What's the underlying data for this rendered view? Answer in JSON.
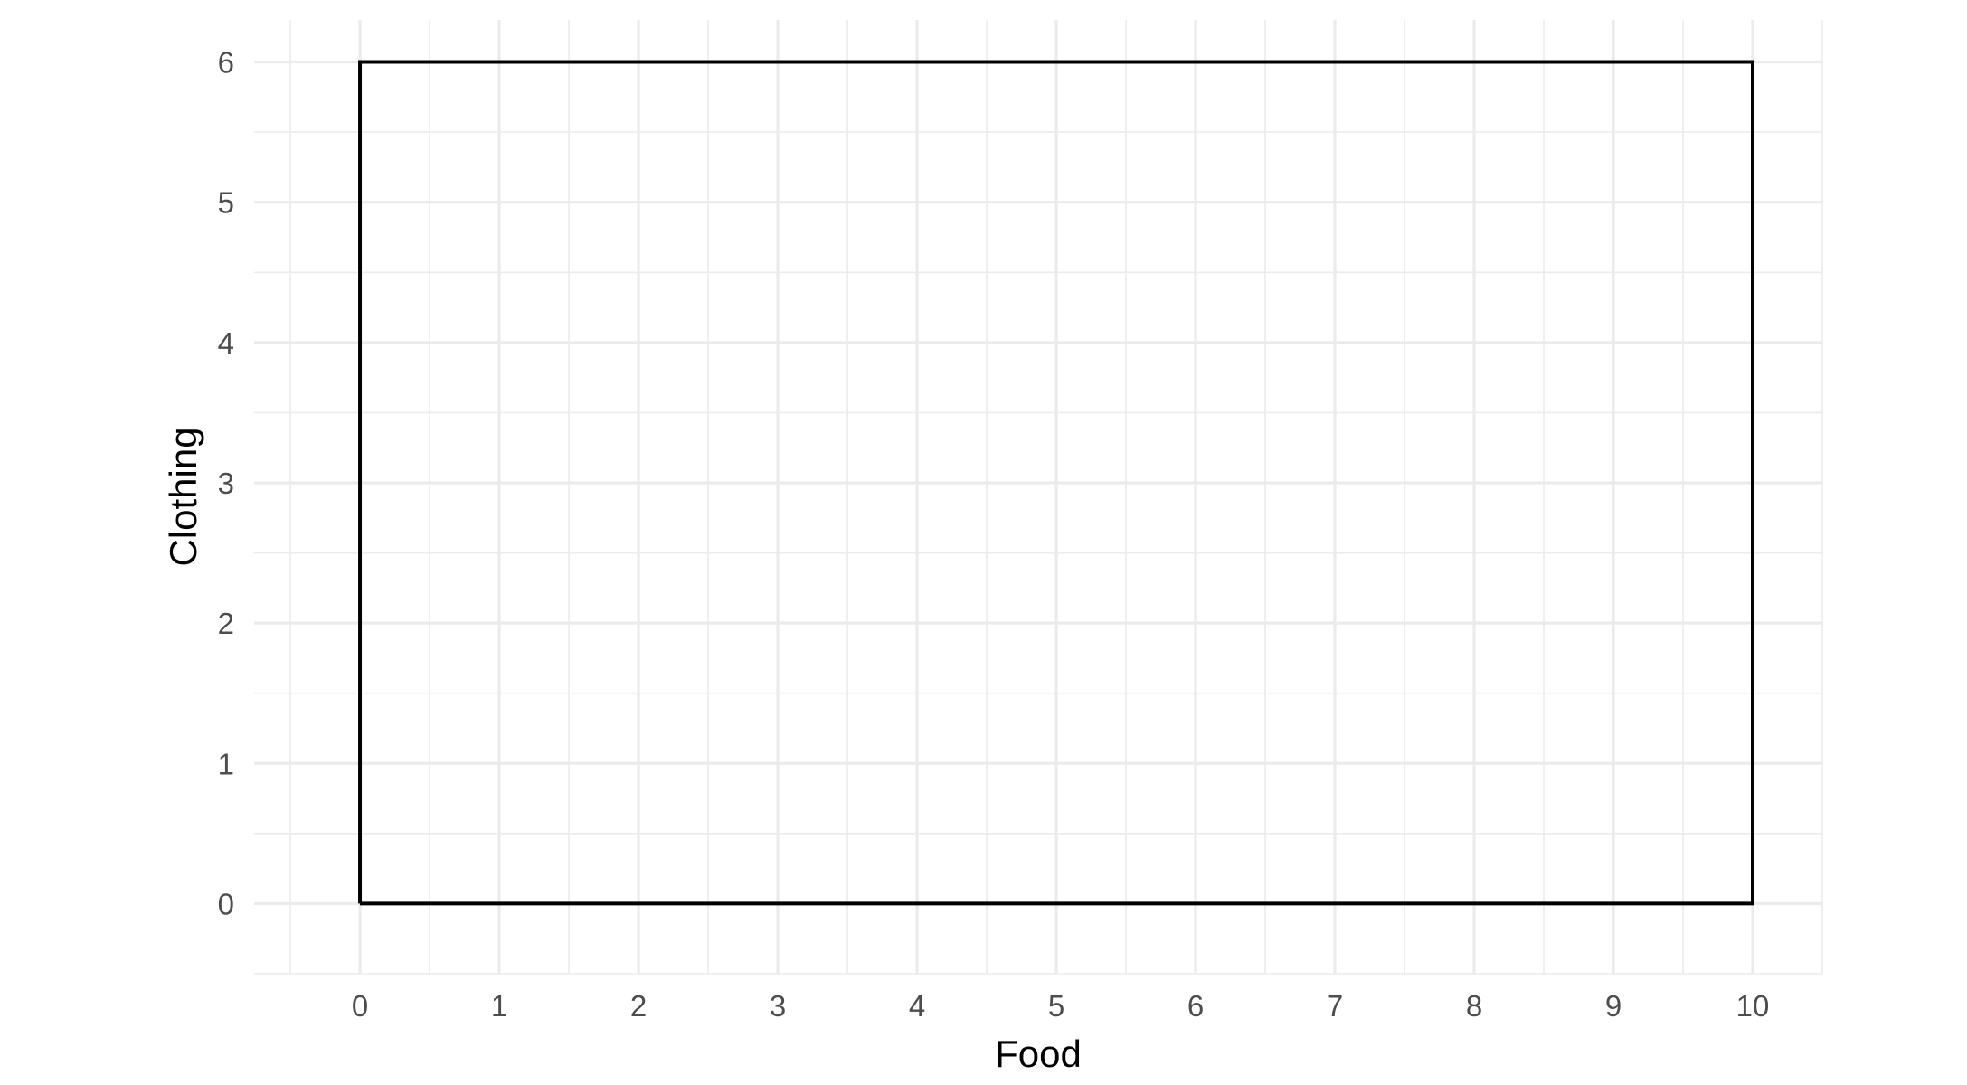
{
  "chart_data": {
    "type": "line",
    "xlabel": "Food",
    "ylabel": "Clothing",
    "xlim": [
      -0.76,
      10.5
    ],
    "ylim": [
      -0.5,
      6.3
    ],
    "x_ticks": [
      0,
      1,
      2,
      3,
      4,
      5,
      6,
      7,
      8,
      9,
      10
    ],
    "y_ticks": [
      0,
      1,
      2,
      3,
      4,
      5,
      6
    ],
    "x_tick_labels": [
      "0",
      "1",
      "2",
      "3",
      "4",
      "5",
      "6",
      "7",
      "8",
      "9",
      "10"
    ],
    "y_tick_labels": [
      "0",
      "1",
      "2",
      "3",
      "4",
      "5",
      "6"
    ],
    "series": [
      {
        "x": [
          0,
          0,
          10,
          10,
          0
        ],
        "y": [
          0,
          6,
          6,
          0,
          0
        ]
      }
    ],
    "grid": true,
    "minor_grid": true,
    "line_color": "#000000",
    "grid_color": "#ebebeb",
    "background": "#ffffff"
  }
}
